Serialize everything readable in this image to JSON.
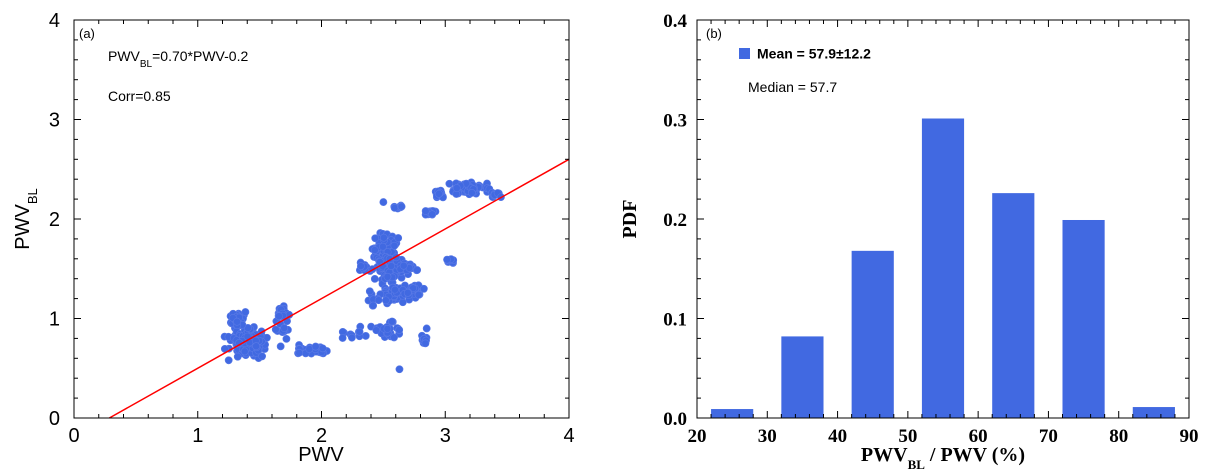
{
  "chart_data": [
    {
      "type": "scatter",
      "panel_label": "(a)",
      "xlabel": "PWV",
      "ylabel": {
        "base": "PWV",
        "sub": "BL"
      },
      "xlim": [
        0,
        4
      ],
      "ylim": [
        0,
        4
      ],
      "xticks": [
        "0",
        "1",
        "2",
        "3",
        "4"
      ],
      "yticks": [
        "0",
        "1",
        "2",
        "3",
        "4"
      ],
      "grid": false,
      "annotations": {
        "equation": {
          "base": "PWV",
          "sub": "BL",
          "rest": "=0.70*PWV-0.2"
        },
        "corr": "Corr=0.85"
      },
      "fit_line": {
        "slope": 0.7,
        "intercept": -0.2
      },
      "colors": {
        "points": "#4169e1",
        "point_edge": "#5a7ae6",
        "fit_line": "#ff0000"
      },
      "clusters": [
        {
          "cx": 1.4,
          "cy": 0.76,
          "sx": 0.1,
          "sy": 0.09,
          "n": 140
        },
        {
          "cx": 1.34,
          "cy": 0.98,
          "sx": 0.06,
          "sy": 0.05,
          "n": 30
        },
        {
          "cx": 1.68,
          "cy": 1.04,
          "sx": 0.04,
          "sy": 0.06,
          "n": 18
        },
        {
          "cx": 1.7,
          "cy": 0.88,
          "sx": 0.04,
          "sy": 0.05,
          "n": 10
        },
        {
          "cx": 1.92,
          "cy": 0.68,
          "sx": 0.1,
          "sy": 0.03,
          "n": 28
        },
        {
          "cx": 2.5,
          "cy": 1.7,
          "sx": 0.07,
          "sy": 0.1,
          "n": 95
        },
        {
          "cx": 2.56,
          "cy": 1.48,
          "sx": 0.08,
          "sy": 0.1,
          "n": 70
        },
        {
          "cx": 2.6,
          "cy": 1.25,
          "sx": 0.1,
          "sy": 0.06,
          "n": 55
        },
        {
          "cx": 2.75,
          "cy": 1.28,
          "sx": 0.05,
          "sy": 0.06,
          "n": 18
        },
        {
          "cx": 2.72,
          "cy": 1.52,
          "sx": 0.06,
          "sy": 0.03,
          "n": 18
        },
        {
          "cx": 2.38,
          "cy": 0.86,
          "sx": 0.12,
          "sy": 0.06,
          "n": 22
        },
        {
          "cx": 2.57,
          "cy": 0.9,
          "sx": 0.06,
          "sy": 0.07,
          "n": 14
        },
        {
          "cx": 2.35,
          "cy": 1.5,
          "sx": 0.04,
          "sy": 0.05,
          "n": 10
        },
        {
          "cx": 2.44,
          "cy": 1.2,
          "sx": 0.05,
          "sy": 0.08,
          "n": 10
        },
        {
          "cx": 2.63,
          "cy": 2.12,
          "sx": 0.03,
          "sy": 0.02,
          "n": 8
        },
        {
          "cx": 3.05,
          "cy": 1.58,
          "sx": 0.03,
          "sy": 0.02,
          "n": 10
        },
        {
          "cx": 2.95,
          "cy": 2.25,
          "sx": 0.03,
          "sy": 0.04,
          "n": 14
        },
        {
          "cx": 2.88,
          "cy": 2.06,
          "sx": 0.04,
          "sy": 0.02,
          "n": 12
        },
        {
          "cx": 3.2,
          "cy": 2.3,
          "sx": 0.12,
          "sy": 0.05,
          "n": 55
        },
        {
          "cx": 3.4,
          "cy": 2.24,
          "sx": 0.03,
          "sy": 0.02,
          "n": 8
        },
        {
          "cx": 2.83,
          "cy": 0.8,
          "sx": 0.02,
          "sy": 0.06,
          "n": 7
        }
      ],
      "points": [
        [
          2.5,
          2.17
        ],
        [
          2.63,
          0.49
        ],
        [
          2.57,
          0.97
        ],
        [
          1.67,
          0.72
        ],
        [
          1.52,
          0.62
        ],
        [
          2.01,
          0.7
        ],
        [
          2.85,
          0.9
        ],
        [
          2.84,
          0.75
        ],
        [
          3.45,
          2.22
        ],
        [
          1.25,
          0.58
        ]
      ]
    },
    {
      "type": "bar",
      "panel_label": "(b)",
      "xlabel": {
        "base": "PWV",
        "sub": "BL",
        "rest": " / PWV (%)"
      },
      "ylabel": "PDF",
      "xlim": [
        20,
        90
      ],
      "ylim": [
        0,
        0.4
      ],
      "xticks": [
        "20",
        "30",
        "40",
        "50",
        "60",
        "70",
        "80",
        "90"
      ],
      "yticks": [
        "0.0",
        "0.1",
        "0.2",
        "0.3",
        "0.4"
      ],
      "grid": false,
      "bar_width": 6,
      "categories": [
        25,
        35,
        45,
        55,
        65,
        75,
        85
      ],
      "values": [
        0.009,
        0.082,
        0.168,
        0.301,
        0.226,
        0.199,
        0.011
      ],
      "legend": {
        "position": "top-left",
        "mean_label": "Mean = 57.9±12.2"
      },
      "median_text": "Median = 57.7",
      "colors": {
        "bars": "#4169e1",
        "legend_swatch": "#4169e1"
      }
    }
  ]
}
